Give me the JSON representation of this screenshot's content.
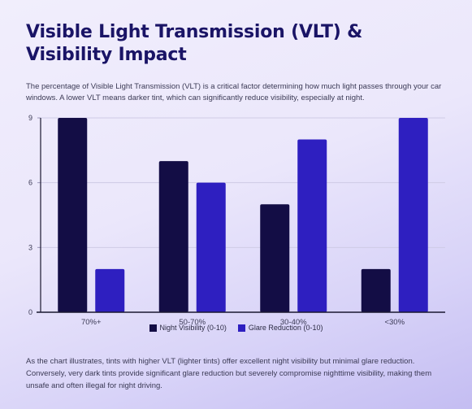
{
  "title": "Visible Light Transmission (VLT) & Visibility Impact",
  "intro": "The percentage of Visible Light Transmission (VLT) is a critical factor determining how much light passes through your car windows. A lower VLT means darker tint, which can significantly reduce visibility, especially at night.",
  "outro": "As the chart illustrates, tints with higher VLT (lighter tints) offer excellent night visibility but minimal glare reduction. Conversely, very dark tints provide significant glare reduction but severely compromise nighttime visibility, making them unsafe and often illegal for night driving.",
  "chart_data": {
    "type": "bar",
    "categories": [
      "70%+",
      "50-70%",
      "30-40%",
      "<30%"
    ],
    "series": [
      {
        "name": "Night Visibility (0-10)",
        "values": [
          9,
          7,
          5,
          2
        ],
        "color": "#130d45"
      },
      {
        "name": "Glare Reduction (0-10)",
        "values": [
          2,
          6,
          8,
          9
        ],
        "color": "#2e1fc0"
      }
    ],
    "ylim": [
      0,
      9
    ],
    "yticks": [
      "0",
      "3",
      "6",
      "9"
    ],
    "grid": true,
    "legend": "bottom-center"
  }
}
